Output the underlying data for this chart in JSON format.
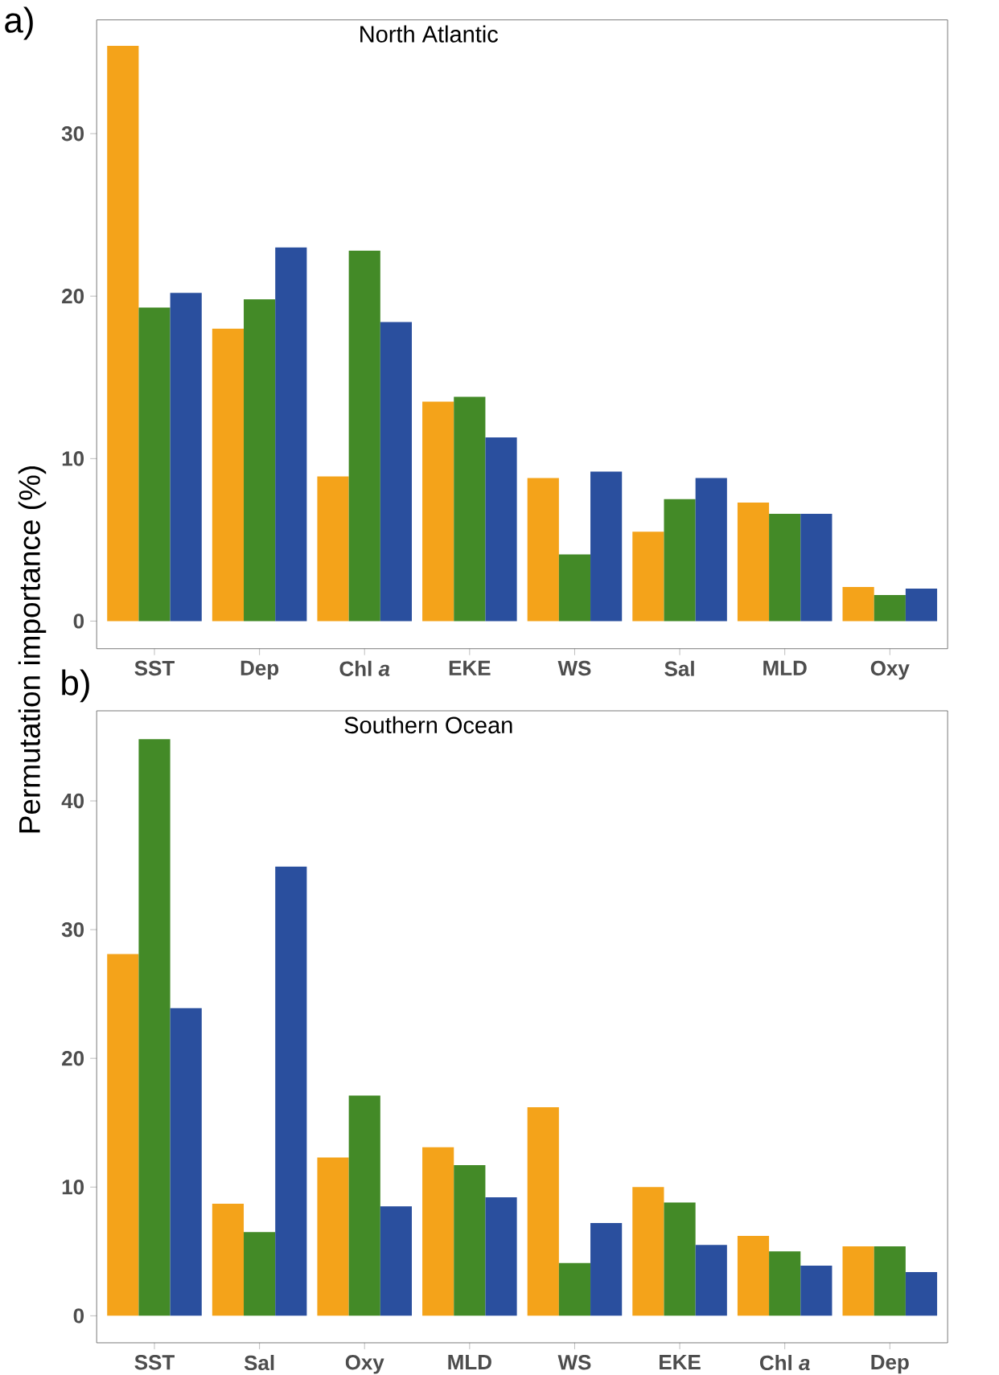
{
  "chart_data": [
    {
      "type": "bar",
      "title": "North Atlantic",
      "ylabel": "Permutation importance (%)",
      "annotations": [
        "a)"
      ],
      "categories": [
        "SST",
        "Dep",
        "Chl *a*",
        "EKE",
        "WS",
        "Sal",
        "MLD",
        "Oxy"
      ],
      "ylim": [
        -1.7,
        37.0
      ],
      "yticks": [
        0,
        10,
        20,
        30
      ],
      "series": [
        {
          "color": "#f4a31a",
          "values": [
            35.4,
            18.0,
            8.9,
            13.5,
            8.8,
            5.5,
            7.3,
            2.1
          ]
        },
        {
          "color": "#438a27",
          "values": [
            19.3,
            19.8,
            22.8,
            13.8,
            4.1,
            7.5,
            6.6,
            1.6
          ]
        },
        {
          "color": "#2a4f9e",
          "values": [
            20.2,
            23.0,
            18.4,
            11.3,
            9.2,
            8.8,
            6.6,
            2.0
          ]
        }
      ]
    },
    {
      "type": "bar",
      "title": "Southern Ocean",
      "annotations": [
        "b)"
      ],
      "categories": [
        "SST",
        "Sal",
        "Oxy",
        "MLD",
        "WS",
        "EKE",
        "Chl *a*",
        "Dep"
      ],
      "ylim": [
        -2.1,
        47.0
      ],
      "yticks": [
        0,
        10,
        20,
        30,
        40
      ],
      "series": [
        {
          "color": "#f4a31a",
          "values": [
            28.1,
            8.7,
            12.3,
            13.1,
            16.2,
            10.0,
            6.2,
            5.4
          ]
        },
        {
          "color": "#438a27",
          "values": [
            44.8,
            6.5,
            17.1,
            11.7,
            4.1,
            8.8,
            5.0,
            5.4
          ]
        },
        {
          "color": "#2a4f9e",
          "values": [
            23.9,
            34.9,
            8.5,
            9.2,
            7.2,
            5.5,
            3.9,
            3.4
          ]
        }
      ]
    }
  ]
}
